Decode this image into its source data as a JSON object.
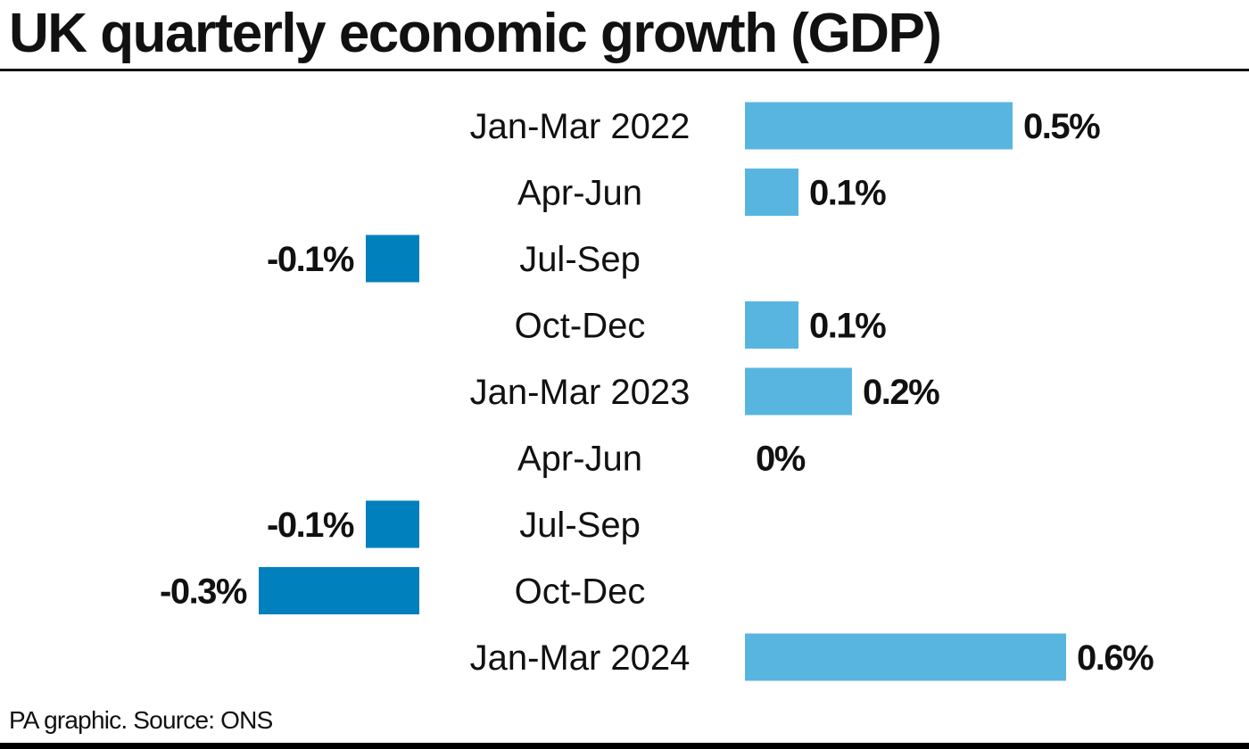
{
  "header": {
    "title": "UK quarterly economic growth (GDP)"
  },
  "footer": {
    "source": "PA graphic. Source: ONS"
  },
  "colors": {
    "positive": "#58B5DF",
    "negative": "#0080BC",
    "text": "#111111"
  },
  "chart_data": {
    "type": "bar",
    "orientation": "horizontal",
    "title": "UK quarterly economic growth (GDP)",
    "xlabel": "",
    "ylabel": "",
    "unit": "%",
    "grid": false,
    "legend": "none",
    "categories": [
      "Jan-Mar 2022",
      "Apr-Jun",
      "Jul-Sep",
      "Oct-Dec",
      "Jan-Mar 2023",
      "Apr-Jun",
      "Jul-Sep",
      "Oct-Dec",
      "Jan-Mar 2024"
    ],
    "values": [
      0.5,
      0.1,
      -0.1,
      0.1,
      0.2,
      0,
      -0.1,
      -0.3,
      0.6
    ],
    "data_labels": [
      "0.5%",
      "0.1%",
      "-0.1%",
      "0.1%",
      "0.2%",
      "0%",
      "-0.1%",
      "-0.3%",
      "0.6%"
    ],
    "xlim": [
      -0.3,
      0.6
    ]
  }
}
